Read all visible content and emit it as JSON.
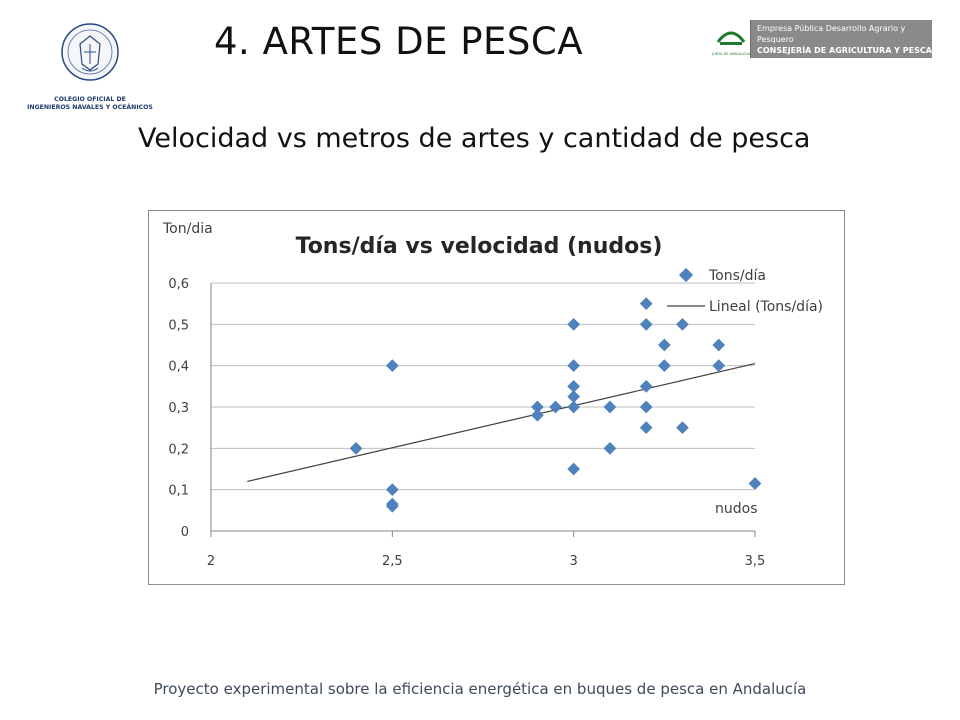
{
  "header": {
    "title": "4. ARTES DE PESCA",
    "subtitle": "Velocidad vs metros de artes y cantidad de pesca"
  },
  "logos": {
    "left": {
      "icon": "coat-of-arms-seal-icon",
      "lines": [
        "COLEGIO OFICIAL DE",
        "INGENIEROS NAVALES Y OCEÁNICOS"
      ]
    },
    "right": {
      "icon": "junta-andalucia-logo-icon",
      "badge_text": "JUNTA DE ANDALUCIA",
      "line1": "Empresa Pública Desarrollo Agrario y Pesquero",
      "line2": "CONSEJERÍA DE AGRICULTURA Y PESCA"
    }
  },
  "footer": {
    "text": "Proyecto experimental sobre la eficiencia energética en buques de pesca en Andalucía"
  },
  "colors": {
    "marker": "#4f81bd",
    "trendline": "#404040",
    "grid": "#bfbfbf"
  },
  "chart_data": {
    "type": "scatter",
    "title": "Tons/día vs velocidad (nudos)",
    "xlabel": "nudos",
    "ylabel": "Ton/dia",
    "xlim": [
      2,
      3.5
    ],
    "ylim": [
      0,
      0.6
    ],
    "xticks": [
      "2",
      "2,5",
      "3",
      "3,5"
    ],
    "xtick_values": [
      2,
      2.5,
      3,
      3.5
    ],
    "yticks": [
      "0",
      "0,1",
      "0,2",
      "0,3",
      "0,4",
      "0,5",
      "0,6"
    ],
    "ytick_values": [
      0,
      0.1,
      0.2,
      0.3,
      0.4,
      0.5,
      0.6
    ],
    "grid": "horizontal",
    "legend_position": "top-right",
    "series": [
      {
        "name": "Tons/día",
        "points": [
          [
            2.4,
            0.2
          ],
          [
            2.5,
            0.4
          ],
          [
            2.5,
            0.1
          ],
          [
            2.5,
            0.065
          ],
          [
            2.5,
            0.06
          ],
          [
            2.9,
            0.3
          ],
          [
            2.9,
            0.28
          ],
          [
            2.95,
            0.3
          ],
          [
            3.0,
            0.5
          ],
          [
            3.0,
            0.4
          ],
          [
            3.0,
            0.35
          ],
          [
            3.0,
            0.325
          ],
          [
            3.0,
            0.3
          ],
          [
            3.0,
            0.15
          ],
          [
            3.1,
            0.3
          ],
          [
            3.1,
            0.2
          ],
          [
            3.2,
            0.55
          ],
          [
            3.2,
            0.5
          ],
          [
            3.2,
            0.35
          ],
          [
            3.2,
            0.3
          ],
          [
            3.2,
            0.25
          ],
          [
            3.25,
            0.45
          ],
          [
            3.25,
            0.4
          ],
          [
            3.3,
            0.5
          ],
          [
            3.3,
            0.25
          ],
          [
            3.4,
            0.45
          ],
          [
            3.4,
            0.4
          ],
          [
            3.5,
            0.115
          ]
        ]
      }
    ],
    "trendline": {
      "name": "Lineal (Tons/día)",
      "type": "linear",
      "start": [
        2.1,
        0.12
      ],
      "end": [
        3.5,
        0.405
      ]
    }
  }
}
